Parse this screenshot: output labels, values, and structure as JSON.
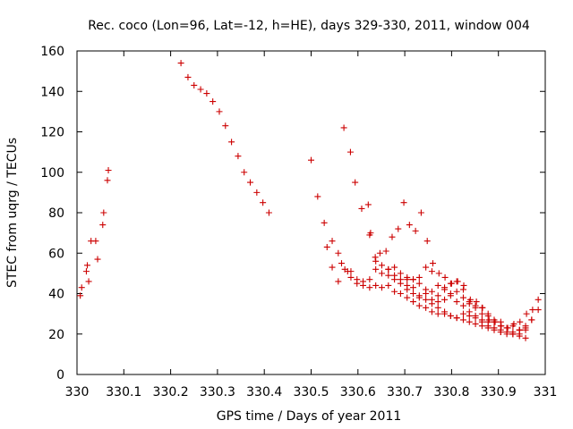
{
  "chart_data": {
    "type": "scatter",
    "title": "Rec. coco (Lon=96, Lat=-12, h=HE), days 329-330, 2011, window 004",
    "xlabel": "GPS time / Days of year 2011",
    "ylabel": "STEC from uqrg / TECUs",
    "xlim": [
      330,
      331
    ],
    "ylim": [
      0,
      160
    ],
    "xticks": [
      330,
      330.1,
      330.2,
      330.3,
      330.4,
      330.5,
      330.6,
      330.7,
      330.8,
      330.9,
      331
    ],
    "xtick_labels": [
      "330",
      "330.1",
      "330.2",
      "330.3",
      "330.4",
      "330.5",
      "330.6",
      "330.7",
      "330.8",
      "330.9",
      "331"
    ],
    "yticks": [
      0,
      20,
      40,
      60,
      80,
      100,
      120,
      140,
      160
    ],
    "ytick_labels": [
      "0",
      "20",
      "40",
      "60",
      "80",
      "100",
      "120",
      "140",
      "160"
    ],
    "grid": false,
    "legend": "none",
    "marker": "+",
    "color": "#cc0000",
    "series": [
      {
        "x": [
          330.007,
          330.01,
          330.02,
          330.022,
          330.025,
          330.03,
          330.04,
          330.044,
          330.055,
          330.057,
          330.065,
          330.067,
          330.222,
          330.237,
          330.25,
          330.264,
          330.277,
          330.29,
          330.304,
          330.317,
          330.33,
          330.344,
          330.357,
          330.37,
          330.384,
          330.397,
          330.41,
          330.5,
          330.514,
          330.528,
          330.534,
          330.545,
          330.558,
          330.565,
          330.57,
          330.578,
          330.584,
          330.594,
          330.608,
          330.622,
          330.627,
          330.637,
          330.647,
          330.66,
          330.673,
          330.686,
          330.698,
          330.71,
          330.723,
          330.735,
          330.748,
          330.76,
          330.773,
          330.786,
          330.8,
          330.813,
          330.826,
          330.84,
          330.853,
          330.866,
          330.88,
          330.893,
          330.906,
          330.92,
          330.933,
          330.946,
          330.96,
          330.973
        ],
        "y": [
          39,
          43,
          51,
          54,
          46,
          66,
          66,
          57,
          74,
          80,
          96,
          101,
          154,
          147,
          143,
          141,
          139,
          135,
          130,
          123,
          115,
          108,
          100,
          95,
          90,
          85,
          80,
          106,
          88,
          75,
          63,
          66,
          46,
          55,
          122,
          51,
          110,
          95,
          82,
          84,
          70,
          58,
          60,
          61,
          68,
          72,
          85,
          74,
          71,
          80,
          66,
          55,
          50,
          48,
          45,
          46,
          44,
          37,
          36,
          33,
          27,
          26,
          24,
          23,
          25,
          26,
          30,
          32
        ]
      },
      {
        "x": [
          330.545,
          330.558,
          330.572,
          330.585,
          330.598,
          330.611,
          330.625,
          330.638,
          330.651,
          330.665,
          330.678,
          330.691,
          330.705,
          330.718,
          330.731,
          330.745,
          330.758,
          330.771,
          330.785,
          330.798,
          330.811,
          330.825,
          330.838,
          330.851,
          330.865,
          330.878,
          330.891,
          330.905,
          330.918,
          330.931,
          330.945,
          330.958,
          330.971,
          330.985
        ],
        "y": [
          53,
          60,
          52,
          51,
          47,
          46,
          47,
          52,
          50,
          49,
          47,
          47,
          48,
          47,
          45,
          53,
          51,
          44,
          42,
          40,
          41,
          38,
          36,
          34,
          33,
          30,
          26,
          24,
          23,
          21,
          22,
          23,
          27,
          32
        ]
      },
      {
        "x": [
          330.585,
          330.598,
          330.611,
          330.625,
          330.638,
          330.651,
          330.665,
          330.678,
          330.691,
          330.705,
          330.718,
          330.731,
          330.745,
          330.758,
          330.771,
          330.785,
          330.798,
          330.811,
          330.825,
          330.838,
          330.851,
          330.865,
          330.878,
          330.891,
          330.905,
          330.918,
          330.931,
          330.945,
          330.958,
          330.971,
          330.985
        ],
        "y": [
          48,
          45,
          44,
          43,
          44,
          43,
          44,
          41,
          40,
          38,
          36,
          34,
          33,
          31,
          30,
          30,
          29,
          28,
          27,
          26,
          25,
          24,
          23,
          22,
          21,
          20,
          20,
          20,
          22,
          27,
          37
        ]
      },
      {
        "x": [
          330.625,
          330.638,
          330.651,
          330.665,
          330.678,
          330.691,
          330.705,
          330.718,
          330.731,
          330.745,
          330.758,
          330.771,
          330.785,
          330.798,
          330.811,
          330.825,
          330.838,
          330.851,
          330.865,
          330.878,
          330.891,
          330.905,
          330.918,
          330.931,
          330.945,
          330.958
        ],
        "y": [
          69,
          56,
          54,
          52,
          49,
          50,
          47,
          43,
          38,
          37,
          35,
          33,
          31,
          29,
          28,
          30,
          29,
          28,
          26,
          24,
          23,
          21,
          21,
          20,
          19,
          18
        ]
      },
      {
        "x": [
          330.705,
          330.718,
          330.731,
          330.745,
          330.758,
          330.771,
          330.785,
          330.798,
          330.811,
          330.825,
          330.838,
          330.851,
          330.865,
          330.878,
          330.891,
          330.905,
          330.918,
          330.931,
          330.945,
          330.958
        ],
        "y": [
          42,
          40,
          39,
          40,
          37,
          36,
          43,
          39,
          36,
          34,
          31,
          29,
          27,
          26,
          23,
          22,
          21,
          20,
          22,
          24
        ]
      },
      {
        "x": [
          330.665,
          330.678,
          330.691,
          330.705,
          330.718,
          330.731,
          330.745,
          330.758,
          330.771,
          330.785,
          330.798,
          330.811,
          330.825,
          330.838,
          330.851,
          330.865,
          330.878,
          330.891,
          330.905,
          330.918,
          330.931,
          330.945
        ],
        "y": [
          52,
          53,
          45,
          44,
          47,
          48,
          42,
          41,
          39,
          37,
          45,
          46,
          42,
          35,
          33,
          30,
          29,
          27,
          26,
          23,
          24,
          22
        ]
      }
    ]
  }
}
